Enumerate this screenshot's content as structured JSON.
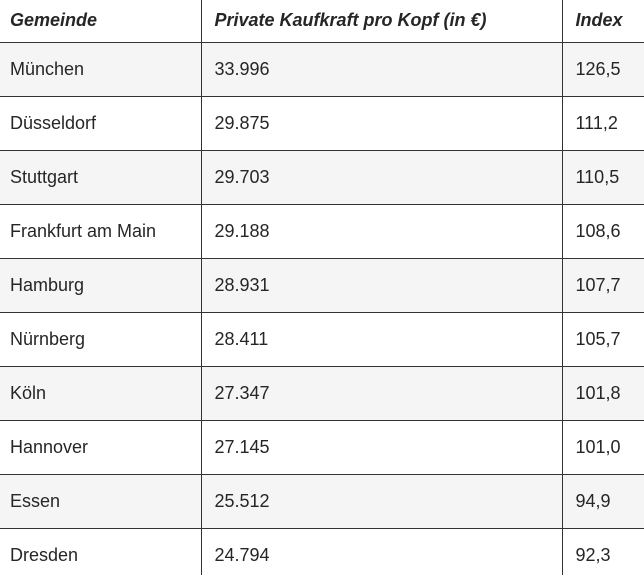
{
  "chart_data": {
    "type": "table",
    "columns": [
      "Gemeinde",
      "Private Kaufkraft pro Kopf (in €)",
      "Index"
    ],
    "rows": [
      {
        "gemeinde": "München",
        "kaufkraft": "33.996",
        "index": "126,5"
      },
      {
        "gemeinde": "Düsseldorf",
        "kaufkraft": "29.875",
        "index": "111,2"
      },
      {
        "gemeinde": "Stuttgart",
        "kaufkraft": "29.703",
        "index": "110,5"
      },
      {
        "gemeinde": "Frankfurt am Main",
        "kaufkraft": "29.188",
        "index": "108,6"
      },
      {
        "gemeinde": "Hamburg",
        "kaufkraft": "28.931",
        "index": "107,7"
      },
      {
        "gemeinde": "Nürnberg",
        "kaufkraft": "28.411",
        "index": "105,7"
      },
      {
        "gemeinde": "Köln",
        "kaufkraft": "27.347",
        "index": "101,8"
      },
      {
        "gemeinde": "Hannover",
        "kaufkraft": "27.145",
        "index": "101,0"
      },
      {
        "gemeinde": "Essen",
        "kaufkraft": "25.512",
        "index": "94,9"
      },
      {
        "gemeinde": "Dresden",
        "kaufkraft": "24.794",
        "index": "92,3"
      }
    ],
    "rows_numeric": [
      {
        "gemeinde": "München",
        "kaufkraft_eur": 33996,
        "index": 126.5
      },
      {
        "gemeinde": "Düsseldorf",
        "kaufkraft_eur": 29875,
        "index": 111.2
      },
      {
        "gemeinde": "Stuttgart",
        "kaufkraft_eur": 29703,
        "index": 110.5
      },
      {
        "gemeinde": "Frankfurt am Main",
        "kaufkraft_eur": 29188,
        "index": 108.6
      },
      {
        "gemeinde": "Hamburg",
        "kaufkraft_eur": 28931,
        "index": 107.7
      },
      {
        "gemeinde": "Nürnberg",
        "kaufkraft_eur": 28411,
        "index": 105.7
      },
      {
        "gemeinde": "Köln",
        "kaufkraft_eur": 27347,
        "index": 101.8
      },
      {
        "gemeinde": "Hannover",
        "kaufkraft_eur": 27145,
        "index": 101.0
      },
      {
        "gemeinde": "Essen",
        "kaufkraft_eur": 25512,
        "index": 94.9
      },
      {
        "gemeinde": "Dresden",
        "kaufkraft_eur": 24794,
        "index": 92.3
      }
    ],
    "layout": {
      "striped": true,
      "first_data_row_striped": true,
      "header_style": "bold-italic"
    }
  },
  "colors": {
    "border": "#333333",
    "stripe": "#f5f5f5",
    "text": "#262626",
    "background": "#ffffff"
  }
}
